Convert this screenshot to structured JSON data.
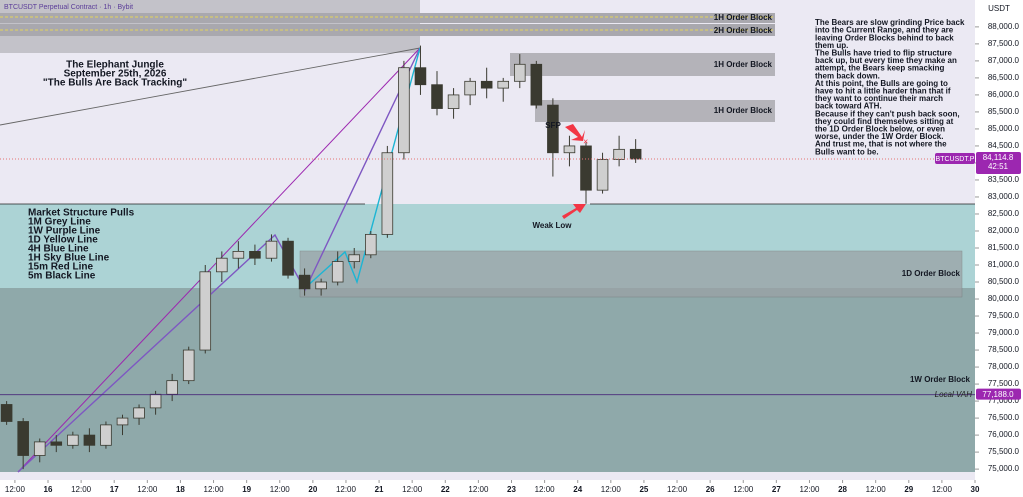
{
  "chart_data": {
    "type": "candlestick",
    "title": "BTCUSDT Perpetual Contract · 1h · Bybit",
    "currency": "USDT",
    "symbol": "BTCUSDT.P",
    "countdown": "42:51",
    "up_color": "#cfcfcf",
    "down_color": "#3a3a30",
    "x": [
      9,
      15,
      21,
      27,
      33,
      39,
      45,
      51,
      57,
      63,
      69,
      75,
      81,
      87,
      93,
      99,
      105,
      111,
      117,
      123,
      129,
      135,
      141,
      147,
      153,
      159,
      165,
      171,
      177,
      183,
      189,
      195,
      201,
      207,
      213,
      219,
      225,
      231,
      237
    ],
    "open": [
      76900,
      76400,
      75400,
      75800,
      75700,
      76000,
      75700,
      76300,
      76500,
      76800,
      77200,
      77600,
      78500,
      80800,
      81200,
      81400,
      81200,
      81700,
      80700,
      80300,
      80500,
      81100,
      81300,
      81900,
      84300,
      86800,
      86300,
      85600,
      86000,
      86400,
      86200,
      86400,
      86900,
      85700,
      84300,
      84500,
      83200,
      84100,
      84400
    ],
    "high": [
      77000,
      76500,
      75900,
      76000,
      76100,
      76200,
      76400,
      76600,
      76900,
      77300,
      77800,
      78600,
      81000,
      81400,
      81700,
      81600,
      81900,
      81800,
      80900,
      80600,
      81400,
      81500,
      82000,
      84500,
      87000,
      87450,
      86700,
      86200,
      86500,
      86800,
      86500,
      87200,
      87000,
      85900,
      84800,
      84600,
      84300,
      84800,
      84700
    ],
    "low": [
      76300,
      75000,
      75200,
      75500,
      75600,
      75500,
      75600,
      76000,
      76300,
      76600,
      77000,
      77500,
      78400,
      80500,
      80900,
      81000,
      81100,
      80600,
      80100,
      80100,
      80400,
      80900,
      81200,
      81800,
      84100,
      86000,
      85400,
      85300,
      85700,
      85900,
      85800,
      86200,
      85600,
      83600,
      83900,
      82800,
      83100,
      83900,
      84000
    ],
    "close": [
      76400,
      75400,
      75800,
      75700,
      76000,
      75700,
      76300,
      76500,
      76800,
      77200,
      77600,
      78500,
      80800,
      81200,
      81400,
      81200,
      81700,
      80700,
      80300,
      80500,
      81100,
      81300,
      81900,
      84300,
      86800,
      86300,
      85600,
      86000,
      86400,
      86200,
      86400,
      86900,
      85700,
      84300,
      84500,
      83200,
      84100,
      84400,
      84115
    ],
    "xlim": [
      6.6,
      360
    ],
    "ylim": [
      74680,
      88790
    ],
    "xticks": [
      {
        "value": 12,
        "label": "12:00"
      },
      {
        "value": 24,
        "label": "16"
      },
      {
        "value": 36,
        "label": "12:00"
      },
      {
        "value": 48,
        "label": "17"
      },
      {
        "value": 60,
        "label": "12:00"
      },
      {
        "value": 72,
        "label": "18"
      },
      {
        "value": 84,
        "label": "12:00"
      },
      {
        "value": 96,
        "label": "19"
      },
      {
        "value": 108,
        "label": "12:00"
      },
      {
        "value": 120,
        "label": "20"
      },
      {
        "value": 132,
        "label": "12:00"
      },
      {
        "value": 144,
        "label": "21"
      },
      {
        "value": 156,
        "label": "12:00"
      },
      {
        "value": 168,
        "label": "22"
      },
      {
        "value": 180,
        "label": "12:00"
      },
      {
        "value": 192,
        "label": "23"
      },
      {
        "value": 204,
        "label": "12:00"
      },
      {
        "value": 216,
        "label": "24"
      },
      {
        "value": 228,
        "label": "12:00"
      },
      {
        "value": 240,
        "label": "25"
      },
      {
        "value": 252,
        "label": "12:00"
      },
      {
        "value": 264,
        "label": "26"
      },
      {
        "value": 276,
        "label": "12:00"
      },
      {
        "value": 288,
        "label": "27"
      },
      {
        "value": 300,
        "label": "12:00"
      },
      {
        "value": 312,
        "label": "28"
      },
      {
        "value": 324,
        "label": "12:00"
      },
      {
        "value": 336,
        "label": "29"
      },
      {
        "value": 348,
        "label": "12:00"
      },
      {
        "value": 360,
        "label": "30"
      }
    ],
    "yticks": [
      {
        "value": 75000,
        "label": "75,000.0"
      },
      {
        "value": 75500,
        "label": "75,500.0"
      },
      {
        "value": 76000,
        "label": "76,000.0"
      },
      {
        "value": 76500,
        "label": "76,500.0"
      },
      {
        "value": 77000,
        "label": "77,000.0"
      },
      {
        "value": 77500,
        "label": "77,500.0"
      },
      {
        "value": 78000,
        "label": "78,000.0"
      },
      {
        "value": 78500,
        "label": "78,500.0"
      },
      {
        "value": 79000,
        "label": "79,000.0"
      },
      {
        "value": 79500,
        "label": "79,500.0"
      },
      {
        "value": 80000,
        "label": "80,000.0"
      },
      {
        "value": 80500,
        "label": "80,500.0"
      },
      {
        "value": 81000,
        "label": "81,000.0"
      },
      {
        "value": 81500,
        "label": "81,500.0"
      },
      {
        "value": 82000,
        "label": "82,000.0"
      },
      {
        "value": 82500,
        "label": "82,500.0"
      },
      {
        "value": 83000,
        "label": "83,000.0"
      },
      {
        "value": 83500,
        "label": "83,500.0"
      },
      {
        "value": 84000,
        "label": "84,000.0"
      },
      {
        "value": 84500,
        "label": "84,500.0"
      },
      {
        "value": 85000,
        "label": "85,000.0"
      },
      {
        "value": 85500,
        "label": "85,500.0"
      },
      {
        "value": 86000,
        "label": "86,000.0"
      },
      {
        "value": 86500,
        "label": "86,500.0"
      },
      {
        "value": 87000,
        "label": "87,000.0"
      },
      {
        "value": 87500,
        "label": "87,500.0"
      },
      {
        "value": 88000,
        "label": "88,000.0"
      }
    ],
    "last_price": {
      "value": 84114.8,
      "label": "84,114.8"
    },
    "vah": {
      "value": 77188,
      "label": "77,188.0",
      "name": "Local VAH"
    },
    "annotations": {
      "heading": [
        "The Elephant Jungle",
        "September 25th, 2026",
        "\"The Bulls Are Back Tracking\""
      ],
      "structure": [
        "Market Structure Pulls",
        "1M Grey Line",
        "1W Purple Line",
        "1D Yellow Line",
        "4H Blue Line",
        "1H Sky Blue Line",
        "15m Red Line",
        "5m Black Line"
      ],
      "order_blocks": [
        "1H Order Block",
        "2H Order Block",
        "1H Order Block",
        "1H Order Block",
        "1D Order Block",
        "1W Order Block"
      ],
      "sfp": "SFP",
      "weak_low": "Weak Low",
      "commentary": [
        "The Bears are slow grinding Price back",
        "into the Current Range, and they are",
        "leaving Order Blocks behind to back",
        "them up.",
        "The Bulls have tried to flip structure",
        "back up, but every time they make an",
        "attempt, the Bears keep smacking",
        "them back down.",
        "At this point, the Bulls are going to",
        "have to hit a little harder than that if",
        "they want to continue their march",
        "back toward ATH.",
        "Because if they can't push back soon,",
        "they could find themselves sitting at",
        "the 1D Order Block below, or even",
        "worse, under the 1W Order Block.",
        "And trust me, that is not where the",
        "Bulls want to be."
      ]
    }
  }
}
